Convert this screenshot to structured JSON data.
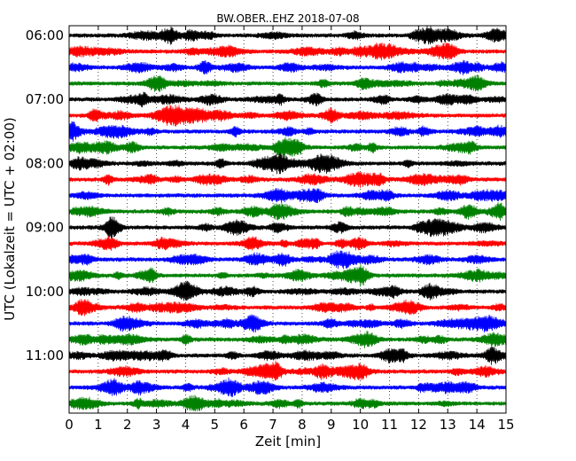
{
  "chart_data": {
    "type": "line",
    "title": "BW.OBER..EHZ 2018-07-08",
    "xlabel": "Zeit  [min]",
    "ylabel": "UTC (Lokalzeit = UTC + 02:00)",
    "xlim": [
      0,
      15
    ],
    "x_ticks": [
      "0",
      "1",
      "2",
      "3",
      "4",
      "5",
      "6",
      "7",
      "8",
      "9",
      "10",
      "11",
      "12",
      "13",
      "14",
      "15"
    ],
    "y_ticks": [
      "06:00",
      "07:00",
      "08:00",
      "09:00",
      "10:00",
      "11:00"
    ],
    "grid": "vertical dotted lines at each minute",
    "trace_interval_minutes": 15,
    "trace_colors": [
      "#000000",
      "#ff0000",
      "#0000ff",
      "#008000"
    ],
    "traces": [
      {
        "start": "06:00",
        "color": "#000000"
      },
      {
        "start": "06:15",
        "color": "#ff0000"
      },
      {
        "start": "06:30",
        "color": "#0000ff"
      },
      {
        "start": "06:45",
        "color": "#008000"
      },
      {
        "start": "07:00",
        "color": "#000000"
      },
      {
        "start": "07:15",
        "color": "#ff0000"
      },
      {
        "start": "07:30",
        "color": "#0000ff"
      },
      {
        "start": "07:45",
        "color": "#008000"
      },
      {
        "start": "08:00",
        "color": "#000000"
      },
      {
        "start": "08:15",
        "color": "#ff0000"
      },
      {
        "start": "08:30",
        "color": "#0000ff"
      },
      {
        "start": "08:45",
        "color": "#008000"
      },
      {
        "start": "09:00",
        "color": "#000000"
      },
      {
        "start": "09:15",
        "color": "#ff0000"
      },
      {
        "start": "09:30",
        "color": "#0000ff"
      },
      {
        "start": "09:45",
        "color": "#008000"
      },
      {
        "start": "10:00",
        "color": "#000000"
      },
      {
        "start": "10:15",
        "color": "#ff0000"
      },
      {
        "start": "10:30",
        "color": "#0000ff"
      },
      {
        "start": "10:45",
        "color": "#008000"
      },
      {
        "start": "11:00",
        "color": "#000000"
      },
      {
        "start": "11:15",
        "color": "#ff0000"
      },
      {
        "start": "11:30",
        "color": "#0000ff"
      },
      {
        "start": "11:45",
        "color": "#008000"
      }
    ]
  }
}
